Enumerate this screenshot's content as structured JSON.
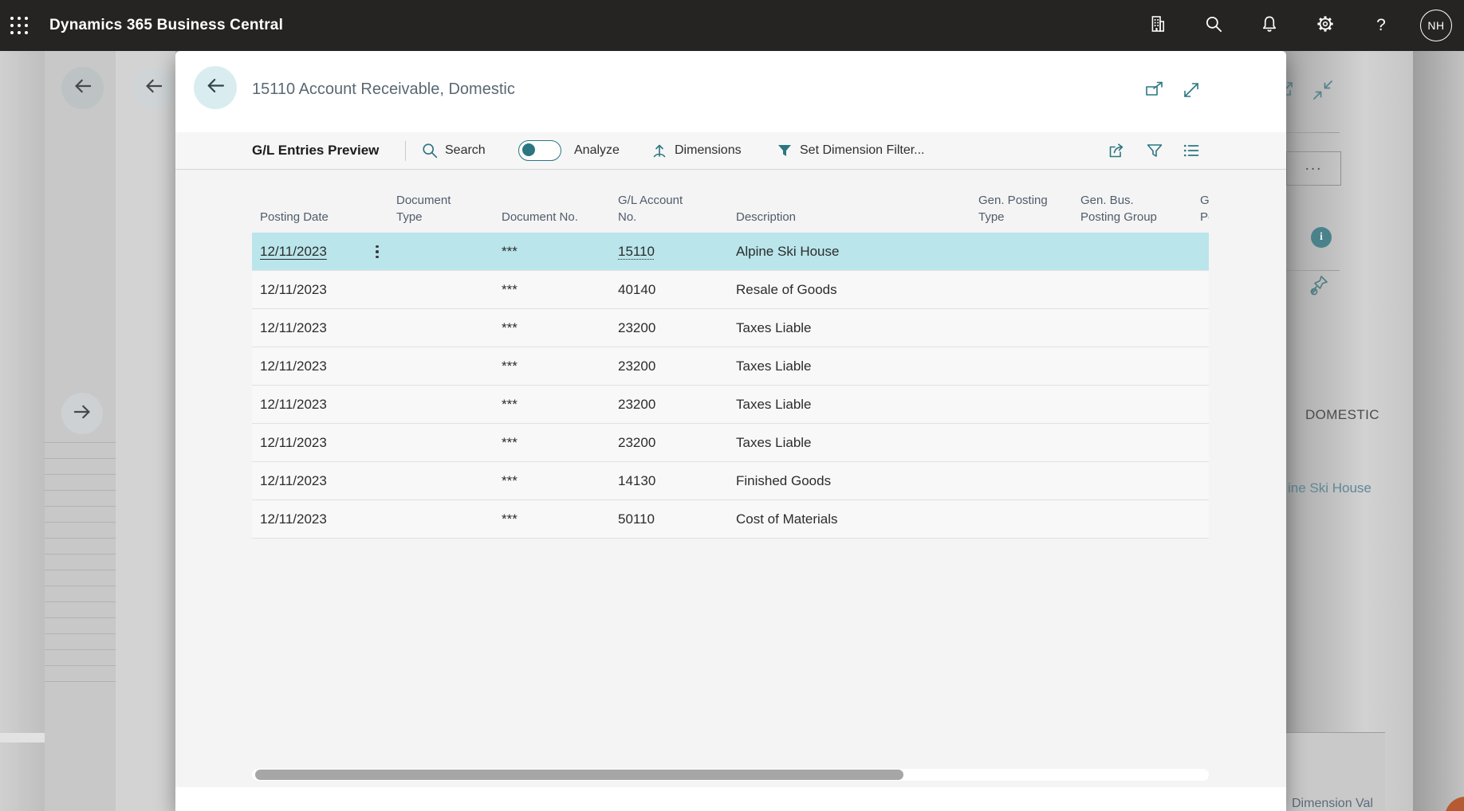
{
  "topbar": {
    "app_title": "Dynamics 365 Business Central",
    "user_initials": "NH"
  },
  "modal": {
    "title": "15110 Account Receivable, Domestic",
    "toolbar": {
      "caption": "G/L Entries Preview",
      "search_label": "Search",
      "analyze_label": "Analyze",
      "analyze_on": false,
      "dimensions_label": "Dimensions",
      "set_dimension_filter_label": "Set Dimension Filter..."
    },
    "grid": {
      "columns": [
        {
          "id": "posting_date",
          "label": "Posting Date"
        },
        {
          "id": "doc_type",
          "label": "Document\nType"
        },
        {
          "id": "doc_no",
          "label": "Document No."
        },
        {
          "id": "account_no",
          "label": "G/L Account\nNo."
        },
        {
          "id": "description",
          "label": "Description"
        },
        {
          "id": "gen_posting_type",
          "label": "Gen. Posting\nType"
        },
        {
          "id": "gen_bus_group",
          "label": "Gen. Bus.\nPosting Group"
        },
        {
          "id": "gen_prod_group",
          "label": "Gen. Prod.\nPosting Group"
        }
      ],
      "rows": [
        {
          "posting_date": "12/11/2023",
          "doc_type": "",
          "doc_no": "***",
          "account_no": "15110",
          "description": "Alpine Ski House",
          "gen_posting_type": "",
          "gen_bus_group": "",
          "gen_prod_group": "",
          "selected": true
        },
        {
          "posting_date": "12/11/2023",
          "doc_type": "",
          "doc_no": "***",
          "account_no": "40140",
          "description": "Resale of Goods",
          "gen_posting_type": "",
          "gen_bus_group": "",
          "gen_prod_group": "",
          "selected": false
        },
        {
          "posting_date": "12/11/2023",
          "doc_type": "",
          "doc_no": "***",
          "account_no": "23200",
          "description": "Taxes Liable",
          "gen_posting_type": "",
          "gen_bus_group": "",
          "gen_prod_group": "",
          "selected": false
        },
        {
          "posting_date": "12/11/2023",
          "doc_type": "",
          "doc_no": "***",
          "account_no": "23200",
          "description": "Taxes Liable",
          "gen_posting_type": "",
          "gen_bus_group": "",
          "gen_prod_group": "",
          "selected": false
        },
        {
          "posting_date": "12/11/2023",
          "doc_type": "",
          "doc_no": "***",
          "account_no": "23200",
          "description": "Taxes Liable",
          "gen_posting_type": "",
          "gen_bus_group": "",
          "gen_prod_group": "",
          "selected": false
        },
        {
          "posting_date": "12/11/2023",
          "doc_type": "",
          "doc_no": "***",
          "account_no": "23200",
          "description": "Taxes Liable",
          "gen_posting_type": "",
          "gen_bus_group": "",
          "gen_prod_group": "",
          "selected": false
        },
        {
          "posting_date": "12/11/2023",
          "doc_type": "",
          "doc_no": "***",
          "account_no": "14130",
          "description": "Finished Goods",
          "gen_posting_type": "",
          "gen_bus_group": "",
          "gen_prod_group": "",
          "selected": false
        },
        {
          "posting_date": "12/11/2023",
          "doc_type": "",
          "doc_no": "***",
          "account_no": "50110",
          "description": "Cost of Materials",
          "gen_posting_type": "",
          "gen_bus_group": "",
          "gen_prod_group": "",
          "selected": false
        }
      ]
    }
  },
  "background": {
    "right": {
      "ellipsis_label": "...",
      "region_label": "DOMESTIC",
      "link_text_partial": "ine Ski House",
      "bottom_label_partial": "Dimension Val"
    }
  },
  "colors": {
    "topbar_bg": "#252423",
    "accent_teal": "#2b7680",
    "row_highlight": "#b9e5eb",
    "scrollbar_thumb": "#a6a6a6"
  }
}
